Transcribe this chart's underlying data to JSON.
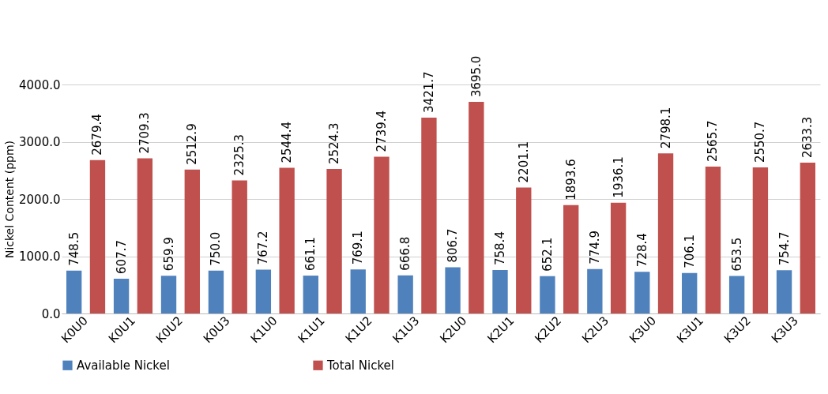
{
  "chart_data": {
    "type": "bar",
    "ylabel": "Nickel Content (ppm)",
    "categories": [
      "K0U0",
      "K0U1",
      "K0U2",
      "K0U3",
      "K1U0",
      "K1U1",
      "K1U2",
      "K1U3",
      "K2U0",
      "K2U1",
      "K2U2",
      "K2U3",
      "K3U0",
      "K3U1",
      "K3U2",
      "K3U3"
    ],
    "series": [
      {
        "name": "Available Nickel",
        "color": "#4f81bd",
        "values": [
          748.5,
          607.7,
          659.9,
          750.0,
          767.2,
          661.1,
          769.1,
          666.8,
          806.7,
          758.4,
          652.1,
          774.9,
          728.4,
          706.1,
          653.5,
          754.7
        ],
        "value_labels": [
          "748.5",
          "607.7",
          "659.9",
          "750.0",
          "767.2",
          "661.1",
          "769.1",
          "666.8",
          "806.7",
          "758.4",
          "652.1",
          "774.9",
          "728.4",
          "706.1",
          "653.5",
          "754.7"
        ]
      },
      {
        "name": "Total Nickel",
        "color": "#c0504d",
        "values": [
          2679.4,
          2709.3,
          2512.9,
          2325.3,
          2544.4,
          2524.3,
          2739.4,
          3421.7,
          3695,
          2201.1,
          1893.6,
          1936.1,
          2798.1,
          2565.7,
          2550.7,
          2633.3
        ],
        "value_labels": [
          "2679.4",
          "2709.3",
          "2512.9",
          "2325.3",
          "2544.4",
          "2524.3",
          "2739.4",
          "3421.7",
          "3695.0",
          "2201.1",
          "1893.6",
          "1936.1",
          "2798.1",
          "2565.7",
          "2550.7",
          "2633.3"
        ]
      }
    ],
    "ylim": [
      0,
      4000
    ],
    "yticks": [
      {
        "value": 0,
        "label": "0.0"
      },
      {
        "value": 1000,
        "label": "1000.0"
      },
      {
        "value": 2000,
        "label": "2000.0"
      },
      {
        "value": 3000,
        "label": "3000.0"
      },
      {
        "value": 4000,
        "label": "4000.0"
      }
    ],
    "grid": "y",
    "legend": "bottom"
  }
}
